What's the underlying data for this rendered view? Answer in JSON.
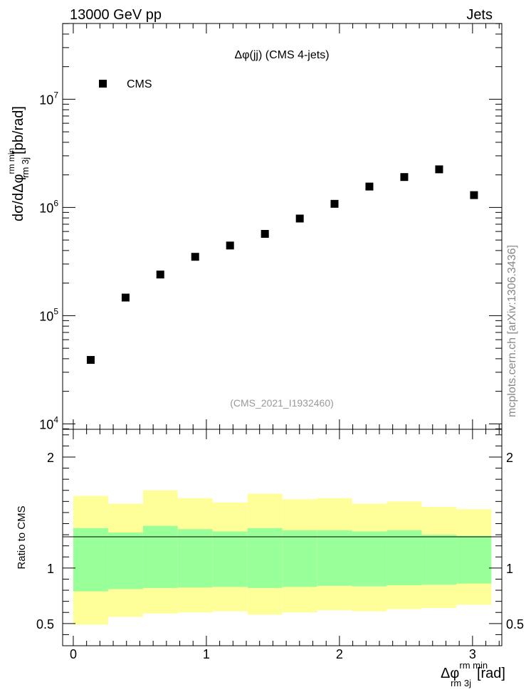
{
  "header": {
    "left": "13000 GeV pp",
    "right": "Jets"
  },
  "side_label": "mcplots.cern.ch [arXiv:1306.3436]",
  "chart_data": {
    "type": "scatter",
    "title": "Δφ(jj) (CMS 4-jets)",
    "subtitle": "(CMS_2021_I1932460)",
    "xlabel": {
      "base": "Δφ",
      "sup": "rm min",
      "sub": "rm 3j",
      "unit": "[rad]"
    },
    "ylabel": {
      "base": "dσ/dΔφ",
      "sup": "rm min",
      "sub": "rm 3j",
      "unit": "[pb/rad]"
    },
    "ratio_ylabel": "Ratio to CMS",
    "legend": [
      {
        "name": "CMS",
        "marker": "square",
        "color": "#000000",
        "position": "top-left"
      }
    ],
    "xlim": [
      -0.08,
      3.22
    ],
    "ylim_log10": [
      3.95,
      7.7
    ],
    "ratio_ylim": [
      0.3,
      2.25
    ],
    "x_ticks": [
      0,
      1,
      2,
      3
    ],
    "y_ticks": [
      {
        "base": "10",
        "exp": "4",
        "value": 10000
      },
      {
        "base": "10",
        "exp": "5",
        "value": 100000
      },
      {
        "base": "10",
        "exp": "6",
        "value": 1000000
      },
      {
        "base": "10",
        "exp": "7",
        "value": 10000000
      }
    ],
    "ratio_ticks": [
      {
        "value": 0.5,
        "label": "0.5"
      },
      {
        "value": 1,
        "label": "1"
      },
      {
        "value": 2,
        "label": "2"
      }
    ],
    "bin_edges": [
      0,
      0.262,
      0.524,
      0.785,
      1.047,
      1.309,
      1.571,
      1.833,
      2.094,
      2.356,
      2.618,
      2.88,
      3.1416
    ],
    "series": [
      {
        "name": "CMS",
        "x": [
          0.131,
          0.393,
          0.654,
          0.916,
          1.178,
          1.44,
          1.702,
          1.963,
          2.225,
          2.487,
          2.749,
          3.011
        ],
        "values": [
          39000,
          147000,
          240000,
          350000,
          445000,
          570000,
          790000,
          1080000,
          1560000,
          1910000,
          2250000,
          1300000
        ]
      }
    ],
    "bands": {
      "yellow_upper": [
        1.65,
        1.58,
        1.7,
        1.63,
        1.59,
        1.67,
        1.62,
        1.63,
        1.58,
        1.6,
        1.55,
        1.53
      ],
      "yellow_lower": [
        0.49,
        0.56,
        0.59,
        0.6,
        0.61,
        0.58,
        0.6,
        0.62,
        0.61,
        0.63,
        0.64,
        0.67
      ],
      "green_upper": [
        1.36,
        1.32,
        1.38,
        1.35,
        1.33,
        1.36,
        1.34,
        1.34,
        1.33,
        1.34,
        1.3,
        1.29
      ],
      "green_lower": [
        0.79,
        0.81,
        0.82,
        0.825,
        0.83,
        0.82,
        0.83,
        0.84,
        0.835,
        0.845,
        0.85,
        0.86
      ],
      "colors": {
        "yellow": "#ffff99",
        "green": "#99ff99"
      }
    }
  }
}
